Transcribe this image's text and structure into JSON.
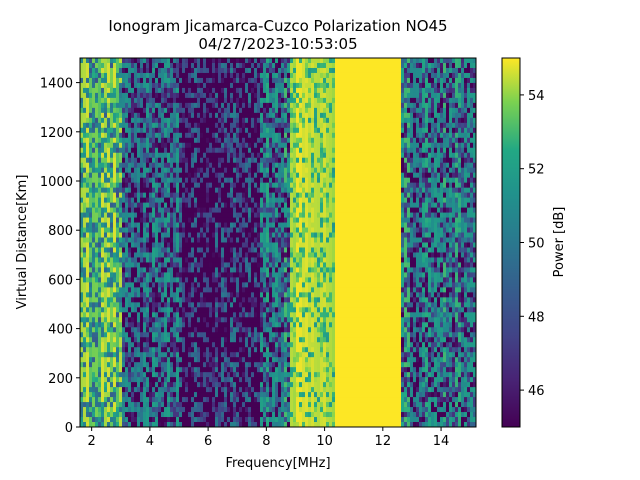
{
  "chart_data": {
    "type": "heatmap",
    "title": "Ionogram Jicamarca-Cuzco Polarization NO45",
    "subtitle": "04/27/2023-10:53:05",
    "xlabel": "Frequency[MHz]",
    "ylabel": "Virtual Distance[Km]",
    "xlim": [
      1.6,
      15.2
    ],
    "ylim": [
      0,
      1500
    ],
    "xticks": [
      "2",
      "4",
      "6",
      "8",
      "10",
      "12",
      "14"
    ],
    "yticks": [
      "0",
      "200",
      "400",
      "600",
      "800",
      "1000",
      "1200",
      "1400"
    ],
    "colorbar": {
      "label": "Power [dB]",
      "range": [
        45,
        55
      ],
      "ticks": [
        "46",
        "48",
        "50",
        "52",
        "54"
      ],
      "colormap": "viridis"
    },
    "frequency_bands": [
      {
        "x_range": [
          1.6,
          3.0
        ],
        "mean_power_db": 54,
        "noise": "moderate"
      },
      {
        "x_range": [
          3.0,
          5.0
        ],
        "mean_power_db": 51,
        "noise": "high"
      },
      {
        "x_range": [
          5.0,
          7.8
        ],
        "mean_power_db": 49,
        "noise": "very high"
      },
      {
        "x_range": [
          7.8,
          8.8
        ],
        "mean_power_db": 52,
        "noise": "high"
      },
      {
        "x_range": [
          8.8,
          10.4
        ],
        "mean_power_db": 54.5,
        "noise": "low"
      },
      {
        "x_range": [
          10.4,
          12.6
        ],
        "mean_power_db": 55,
        "noise": "none"
      },
      {
        "x_range": [
          12.6,
          15.2
        ],
        "mean_power_db": 52,
        "noise": "high"
      }
    ]
  }
}
